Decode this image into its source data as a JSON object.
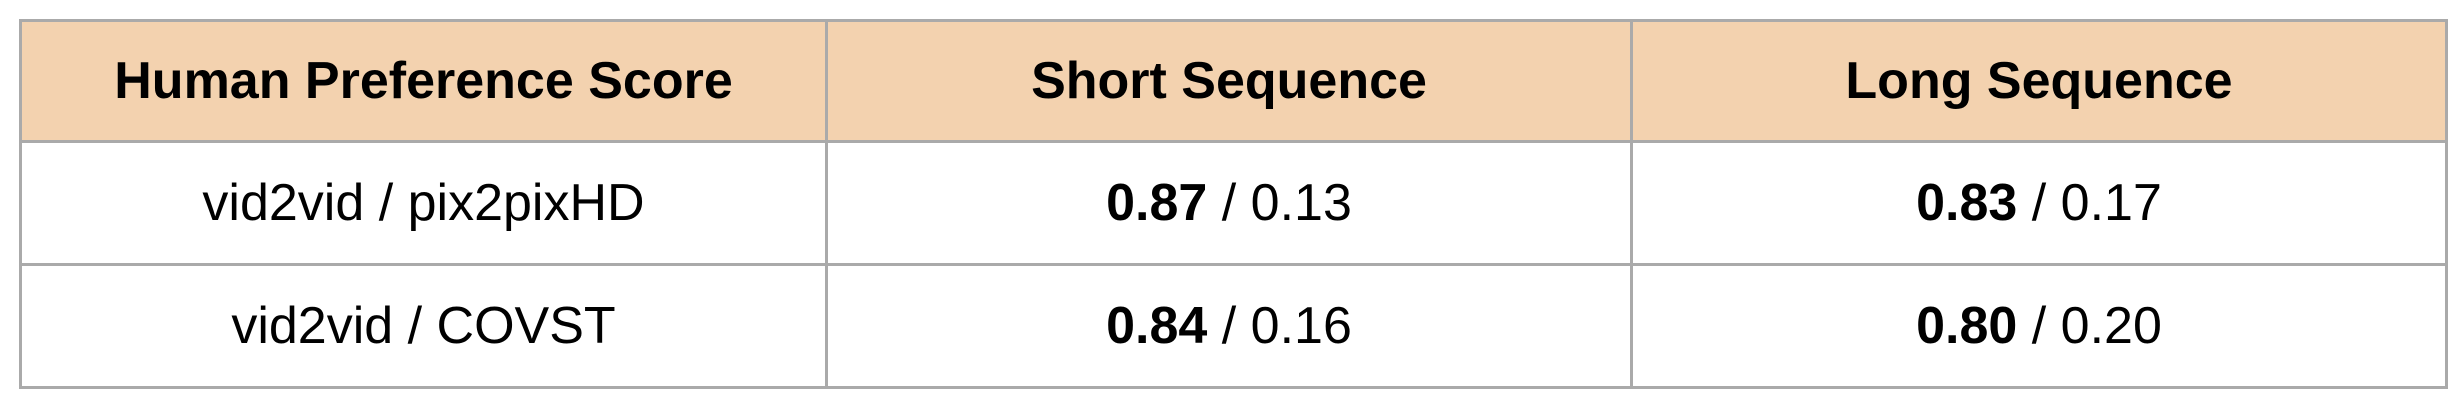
{
  "table": {
    "headers": [
      "Human Preference Score",
      "Short Sequence",
      "Long Sequence"
    ],
    "rows": [
      {
        "label": "vid2vid / pix2pixHD",
        "short": {
          "bold": "0.87",
          "rest": " / 0.13"
        },
        "long": {
          "bold": "0.83",
          "rest": " / 0.17"
        }
      },
      {
        "label": "vid2vid / COVST",
        "short": {
          "bold": "0.84",
          "rest": " / 0.16"
        },
        "long": {
          "bold": "0.80",
          "rest": " / 0.20"
        }
      }
    ]
  },
  "colors": {
    "header_bg": "#f3d2af",
    "border": "#aaaaaa"
  }
}
